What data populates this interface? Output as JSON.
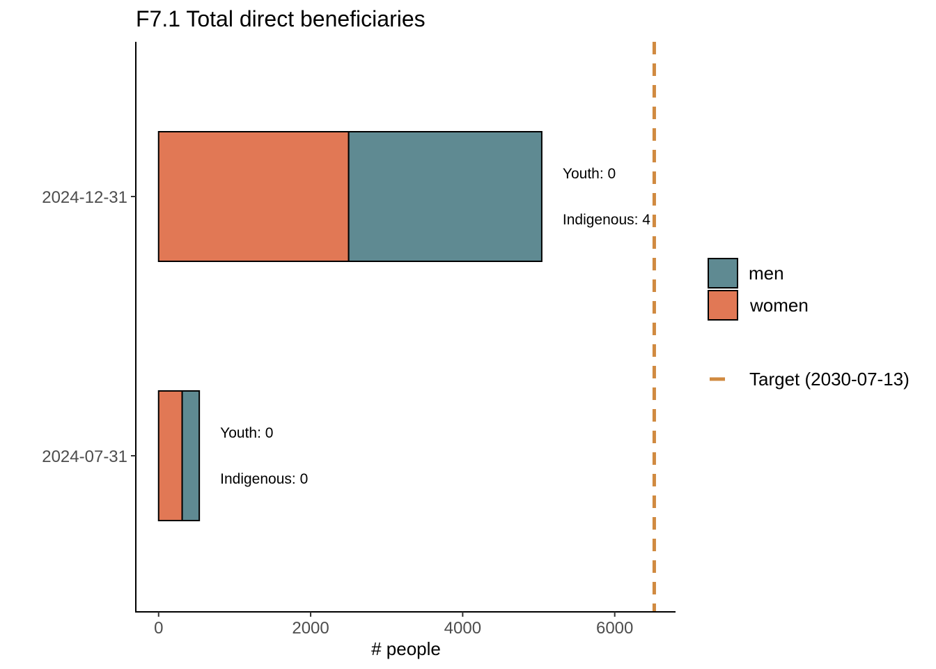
{
  "chart_data": {
    "type": "bar",
    "orientation": "horizontal",
    "stacked": true,
    "title": "F7.1 Total direct beneficiaries",
    "xlabel": "# people",
    "ylabel": "",
    "xlim": [
      -300,
      6800
    ],
    "x_ticks": [
      0,
      2000,
      4000,
      6000
    ],
    "x_tick_labels": [
      "0",
      "2000",
      "4000",
      "6000"
    ],
    "categories": [
      "2024-12-31",
      "2024-07-31"
    ],
    "series": [
      {
        "name": "women",
        "color": "#e17855",
        "values": [
          2500,
          310
        ]
      },
      {
        "name": "men",
        "color": "#5f8a92",
        "values": [
          2540,
          225
        ]
      }
    ],
    "annotations": [
      {
        "category": "2024-12-31",
        "lines": [
          "Youth: 0",
          "Indigenous: 4"
        ]
      },
      {
        "category": "2024-07-31",
        "lines": [
          "Youth: 0",
          "Indigenous: 0"
        ]
      }
    ],
    "target": {
      "value": 6520,
      "label": "Target (2030-07-13)",
      "color": "#d08a40",
      "style": "dashed"
    },
    "legend": {
      "placement": "right",
      "order": [
        "men",
        "women"
      ]
    },
    "grid": false
  }
}
